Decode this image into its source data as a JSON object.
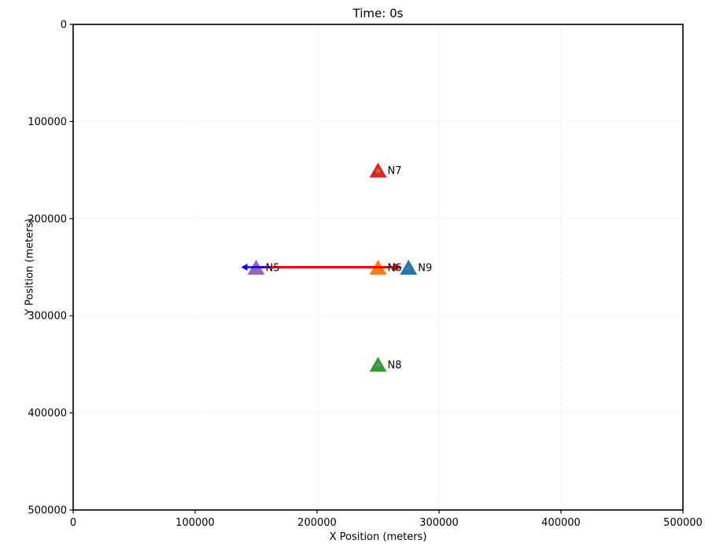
{
  "title": "Time: 0s",
  "chart_data": {
    "type": "scatter",
    "title": "Time: 0s",
    "xlabel": "X Position (meters)",
    "ylabel": "Y Position (meters)",
    "xlim": [
      0,
      500000
    ],
    "ylim": [
      0,
      500000
    ],
    "y_axis_inverted": true,
    "grid": "dotted",
    "legend": "none",
    "x_ticks": [
      {
        "value": 0,
        "label": "0"
      },
      {
        "value": 100000,
        "label": "100000"
      },
      {
        "value": 200000,
        "label": "200000"
      },
      {
        "value": 300000,
        "label": "300000"
      },
      {
        "value": 400000,
        "label": "400000"
      },
      {
        "value": 500000,
        "label": "500000"
      }
    ],
    "y_ticks": [
      {
        "value": 0,
        "label": "0"
      },
      {
        "value": 100000,
        "label": "100000"
      },
      {
        "value": 200000,
        "label": "200000"
      },
      {
        "value": 300000,
        "label": "300000"
      },
      {
        "value": 400000,
        "label": "400000"
      },
      {
        "value": 500000,
        "label": "500000"
      }
    ],
    "nodes": [
      {
        "label": "N5",
        "x": 150000,
        "y": 250000,
        "marker": "triangle-up",
        "color": "#9467bd",
        "dot_color": null,
        "velocity_arrow": {
          "dx": -1,
          "dy": 0,
          "color": "#0000ff"
        }
      },
      {
        "label": "N6",
        "x": 250000,
        "y": 250000,
        "marker": "triangle-up",
        "color": "#ff7f0e",
        "dot_color": null,
        "velocity_arrow": null
      },
      {
        "label": "N7",
        "x": 250000,
        "y": 150000,
        "marker": "triangle-up",
        "color": "#d62728",
        "dot_color": "#b5722e",
        "velocity_arrow": null
      },
      {
        "label": "N8",
        "x": 250000,
        "y": 350000,
        "marker": "triangle-up",
        "color": "#2ca02c",
        "dot_color": "#7f7f7f",
        "velocity_arrow": null
      },
      {
        "label": "N9",
        "x": 275000,
        "y": 250000,
        "marker": "triangle-up",
        "color": "#1f77b4",
        "dot_color": "#6e6e6e",
        "velocity_arrow": null
      }
    ],
    "links": [
      {
        "from": "N5",
        "to": "N9",
        "color": "#ff0000",
        "arrowhead": "at-target",
        "width": 3
      }
    ]
  }
}
